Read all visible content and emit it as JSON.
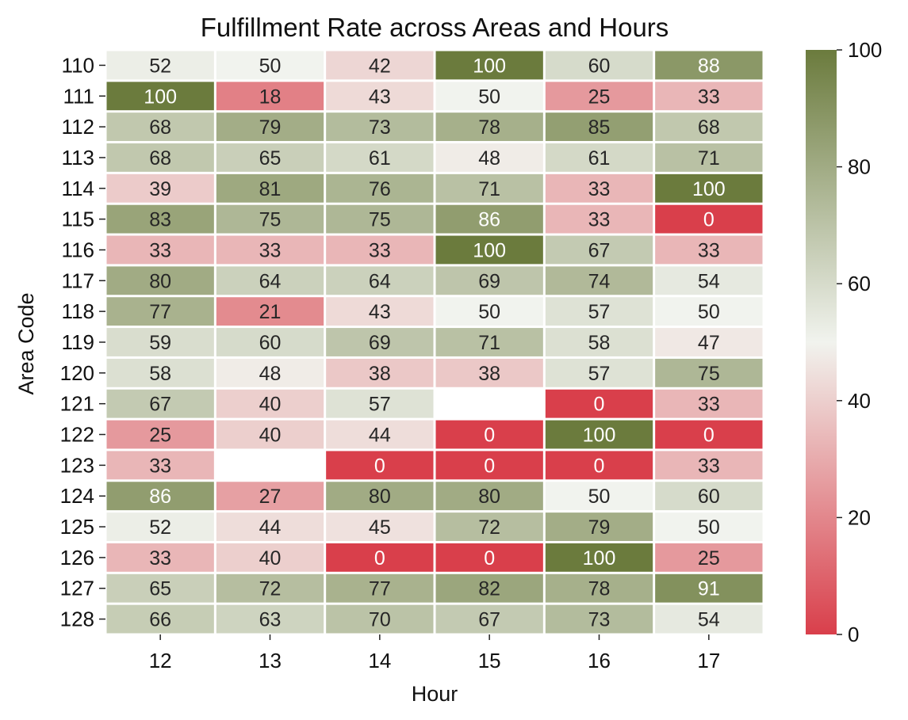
{
  "chart_data": {
    "type": "heatmap",
    "title": "Fulfillment Rate across Areas and Hours",
    "xlabel": "Hour",
    "ylabel": "Area Code",
    "x": [
      "12",
      "13",
      "14",
      "15",
      "16",
      "17"
    ],
    "y": [
      "110",
      "111",
      "112",
      "113",
      "114",
      "115",
      "116",
      "117",
      "118",
      "119",
      "120",
      "121",
      "122",
      "123",
      "124",
      "125",
      "126",
      "127",
      "128"
    ],
    "values": [
      [
        52,
        50,
        42,
        100,
        60,
        88
      ],
      [
        100,
        18,
        43,
        50,
        25,
        33
      ],
      [
        68,
        79,
        73,
        78,
        85,
        68
      ],
      [
        68,
        65,
        61,
        48,
        61,
        71
      ],
      [
        39,
        81,
        76,
        71,
        33,
        100
      ],
      [
        83,
        75,
        75,
        86,
        33,
        0
      ],
      [
        33,
        33,
        33,
        100,
        67,
        33
      ],
      [
        80,
        64,
        64,
        69,
        74,
        54
      ],
      [
        77,
        21,
        43,
        50,
        57,
        50
      ],
      [
        59,
        60,
        69,
        71,
        58,
        47
      ],
      [
        58,
        48,
        38,
        38,
        57,
        75
      ],
      [
        67,
        40,
        57,
        null,
        0,
        33
      ],
      [
        25,
        40,
        44,
        0,
        100,
        0
      ],
      [
        33,
        null,
        0,
        0,
        0,
        33
      ],
      [
        86,
        27,
        80,
        80,
        50,
        60
      ],
      [
        52,
        44,
        45,
        72,
        79,
        50
      ],
      [
        33,
        40,
        0,
        0,
        100,
        25
      ],
      [
        65,
        72,
        77,
        82,
        78,
        91
      ],
      [
        66,
        63,
        70,
        67,
        73,
        54
      ]
    ],
    "colorbar": {
      "min": 0,
      "max": 100,
      "ticks": [
        "0",
        "20",
        "40",
        "60",
        "80",
        "100"
      ]
    },
    "colormap": {
      "low": "#d93f4b",
      "mid": "#f1f3ee",
      "high": "#6b7b3d"
    },
    "grid": false
  }
}
